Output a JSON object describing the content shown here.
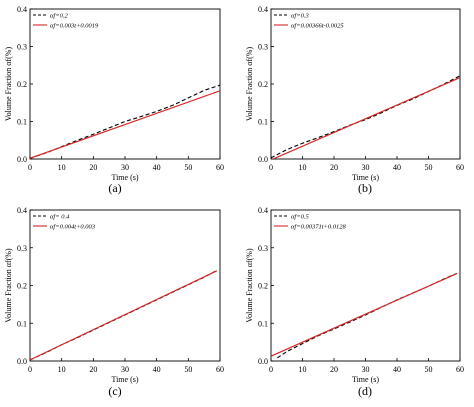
{
  "chart_data": [
    {
      "type": "line",
      "label": "(a)",
      "xlabel": "Time (s)",
      "ylabel": "Volume Fraction αf(%)",
      "xlim": [
        0,
        60
      ],
      "ylim": [
        0,
        0.4
      ],
      "xticks": [
        "0",
        "10",
        "20",
        "30",
        "40",
        "50",
        "60"
      ],
      "yticks": [
        "0.0",
        "0.1",
        "0.2",
        "0.3",
        "0.4"
      ],
      "legend_position": "top-left",
      "series": [
        {
          "name": "αf=0.2",
          "style": "dashed",
          "color": "#000000",
          "x": [
            0,
            5,
            10,
            15,
            20,
            25,
            30,
            35,
            40,
            45,
            50,
            55,
            60
          ],
          "y": [
            0.002,
            0.016,
            0.033,
            0.05,
            0.066,
            0.083,
            0.1,
            0.113,
            0.127,
            0.143,
            0.163,
            0.183,
            0.197
          ]
        },
        {
          "name": "αf=0.003t+0.0019",
          "style": "solid",
          "color": "#d62728",
          "x": [
            0,
            60
          ],
          "y": [
            0.0019,
            0.1819
          ]
        }
      ]
    },
    {
      "type": "line",
      "label": "(b)",
      "xlabel": "Time (s)",
      "ylabel": "Volume Fraction αf(%)",
      "xlim": [
        0,
        60
      ],
      "ylim": [
        0,
        0.4
      ],
      "xticks": [
        "0",
        "10",
        "20",
        "30",
        "40",
        "50",
        "60"
      ],
      "yticks": [
        "0.0",
        "0.1",
        "0.2",
        "0.3",
        "0.4"
      ],
      "legend_position": "top-left",
      "series": [
        {
          "name": "αf=0.3",
          "style": "dashed",
          "color": "#000000",
          "x": [
            0,
            5,
            10,
            15,
            20,
            25,
            30,
            35,
            40,
            45,
            50,
            55,
            60
          ],
          "y": [
            0.003,
            0.025,
            0.042,
            0.057,
            0.073,
            0.09,
            0.105,
            0.123,
            0.143,
            0.16,
            0.18,
            0.2,
            0.222
          ]
        },
        {
          "name": "αf=0.00366t-0.0025",
          "style": "solid",
          "color": "#d62728",
          "x": [
            0,
            60
          ],
          "y": [
            -0.0025,
            0.2171
          ]
        }
      ]
    },
    {
      "type": "line",
      "label": "(c)",
      "xlabel": "Time (s)",
      "ylabel": "Volume Fraction αf(%)",
      "xlim": [
        0,
        60
      ],
      "ylim": [
        0,
        0.4
      ],
      "xticks": [
        "0",
        "10",
        "20",
        "30",
        "40",
        "50",
        "60"
      ],
      "yticks": [
        "0.0",
        "0.1",
        "0.2",
        "0.3",
        "0.4"
      ],
      "legend_position": "top-left",
      "series": [
        {
          "name": "αf= 0.4",
          "style": "dashed",
          "color": "#000000",
          "x": [
            0,
            5,
            10,
            15,
            20,
            25,
            30,
            35,
            40,
            45,
            50,
            55,
            59
          ],
          "y": [
            0.003,
            0.022,
            0.043,
            0.062,
            0.082,
            0.102,
            0.122,
            0.142,
            0.162,
            0.182,
            0.202,
            0.222,
            0.24
          ]
        },
        {
          "name": "αf=0.004t+0.003",
          "style": "solid",
          "color": "#d62728",
          "x": [
            0,
            59
          ],
          "y": [
            0.003,
            0.239
          ]
        }
      ]
    },
    {
      "type": "line",
      "label": "(d)",
      "xlabel": "Time (s)",
      "ylabel": "Volume Fraction αf(%)",
      "xlim": [
        0,
        60
      ],
      "ylim": [
        0,
        0.4
      ],
      "xticks": [
        "0",
        "10",
        "20",
        "30",
        "40",
        "50",
        "60"
      ],
      "yticks": [
        "0.0",
        "0.1",
        "0.2",
        "0.3",
        "0.4"
      ],
      "legend_position": "top-left",
      "series": [
        {
          "name": "αf=0.5",
          "style": "dashed",
          "color": "#000000",
          "x": [
            2,
            5,
            10,
            15,
            20,
            25,
            30,
            35,
            40,
            45,
            50,
            55,
            59
          ],
          "y": [
            0.008,
            0.025,
            0.046,
            0.067,
            0.085,
            0.103,
            0.122,
            0.142,
            0.162,
            0.18,
            0.198,
            0.218,
            0.232
          ]
        },
        {
          "name": "αf=0.00371t+0.0128",
          "style": "solid",
          "color": "#d62728",
          "x": [
            0,
            59
          ],
          "y": [
            0.0128,
            0.2317
          ]
        }
      ]
    }
  ]
}
